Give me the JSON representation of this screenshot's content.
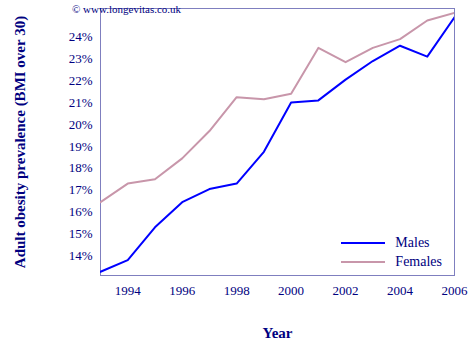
{
  "chart_data": {
    "type": "line",
    "x_label": "Year",
    "y_label": "Adult obesity prevalence (BMI over 30)",
    "annotations": [
      "© www.longevitas.co.uk"
    ],
    "x": [
      1993,
      1994,
      1995,
      1996,
      1997,
      1998,
      1999,
      2000,
      2001,
      2002,
      2003,
      2004,
      2005,
      2006
    ],
    "series": [
      {
        "name": "Males",
        "color": "#0000ff",
        "values": [
          13.27,
          13.8,
          15.3,
          16.45,
          17.05,
          17.3,
          18.75,
          21.0,
          21.1,
          22.05,
          22.9,
          23.6,
          23.1,
          24.9
        ]
      },
      {
        "name": "Females",
        "color": "#c896aa",
        "values": [
          16.45,
          17.3,
          17.5,
          18.45,
          19.7,
          21.25,
          21.15,
          21.4,
          23.5,
          22.85,
          23.5,
          23.9,
          24.75,
          25.1
        ]
      }
    ],
    "xlim": [
      1993,
      2006
    ],
    "xticks": [
      1994,
      1996,
      1998,
      2000,
      2002,
      2004,
      2006
    ],
    "ylim": [
      13.1,
      25.3
    ],
    "yticks": [
      {
        "value": 14,
        "label": "14%"
      },
      {
        "value": 15,
        "label": "15%"
      },
      {
        "value": 16,
        "label": "16%"
      },
      {
        "value": 17,
        "label": "17%"
      },
      {
        "value": 18,
        "label": "18%"
      },
      {
        "value": 19,
        "label": "19%"
      },
      {
        "value": 20,
        "label": "20%"
      },
      {
        "value": 21,
        "label": "21%"
      },
      {
        "value": 22,
        "label": "22%"
      },
      {
        "value": 23,
        "label": "23%"
      },
      {
        "value": 24,
        "label": "24%"
      }
    ],
    "grid": false,
    "legend": "bottom-right"
  }
}
